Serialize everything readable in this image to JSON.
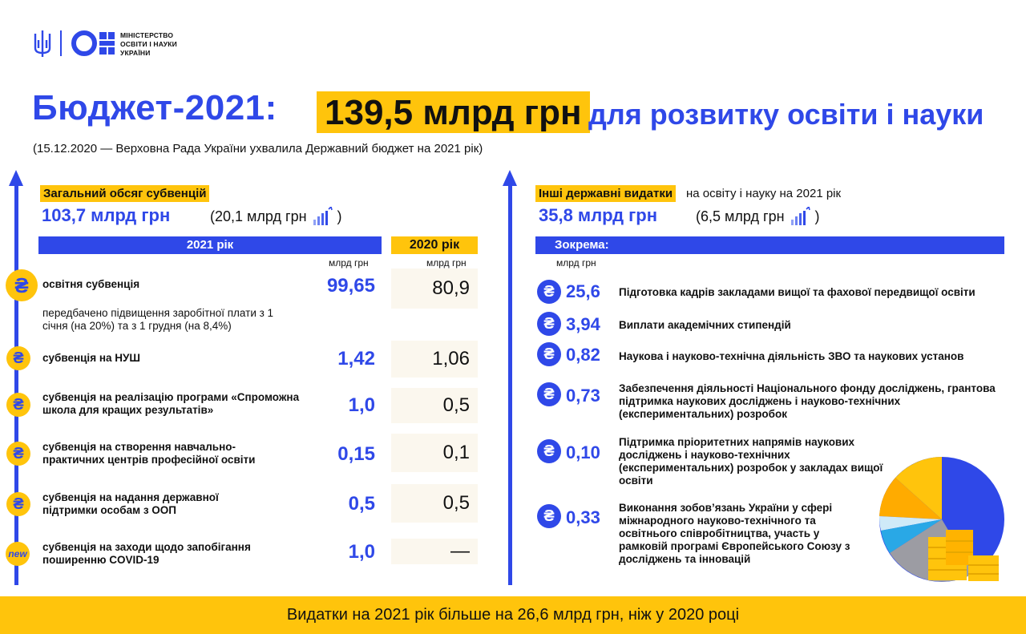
{
  "ministry": {
    "line1": "МІНІСТЕРСТВО",
    "line2": "ОСВІТИ І НАУКИ",
    "line3": "УКРАЇНИ"
  },
  "title": {
    "lead": "Бюджет-2021:",
    "highlight": "139,5 млрд грн",
    "rest": "для розвитку освіти і науки"
  },
  "subtitle": "(15.12.2020 — Верховна Рада України ухвалила Державний бюджет на 2021 рік)",
  "left": {
    "label": "Загальний обсяг субвенцій",
    "total": "103,7 млрд грн",
    "increase": "(20,1 млрд грн",
    "increase_close": ")",
    "col_2021": "2021 рік",
    "col_2020": "2020 рік",
    "unit": "млрд грн",
    "coin_symbol": "₴",
    "new_badge": "new",
    "rows": [
      {
        "label": "освітня субвенція",
        "v2021": "99,65",
        "v2020": "80,9",
        "note": "передбачено підвищення заробітної плати з 1 січня (на 20%) та з 1 грудня (на 8,4%)"
      },
      {
        "label": "субвенція на НУШ",
        "v2021": "1,42",
        "v2020": "1,06"
      },
      {
        "label": "субвенція на реалізацію програми «Спроможна школа для кращих результатів»",
        "v2021": "1,0",
        "v2020": "0,5"
      },
      {
        "label": "субвенція на створення навчально-практичних центрів професійної освіти",
        "v2021": "0,15",
        "v2020": "0,1"
      },
      {
        "label": "субвенція на надання державної підтримки особам з ООП",
        "v2021": "0,5",
        "v2020": "0,5"
      },
      {
        "label": "субвенція на заходи щодо запобігання поширенню COVID-19",
        "v2021": "1,0",
        "v2020": "—"
      }
    ]
  },
  "right": {
    "label": "Інші державні видатки",
    "label_rest": "на освіту і науку на 2021 рік",
    "total": "35,8 млрд грн",
    "increase": "(6,5 млрд грн",
    "increase_close": ")",
    "band": "Зокрема:",
    "unit": "млрд грн",
    "coin_symbol": "₴",
    "rows": [
      {
        "value": "25,6",
        "label": "Підготовка кадрів закладами вищої та фахової передвищої освіти"
      },
      {
        "value": "3,94",
        "label": "Виплати академічних стипендій"
      },
      {
        "value": "0,82",
        "label": "Наукова і науково-технічна діяльність ЗВО та наукових установ"
      },
      {
        "value": "0,73",
        "label": "Забезпечення діяльності Національного фонду досліджень, грантова підтримка наукових досліджень і науково-технічних (експериментальних) розробок"
      },
      {
        "value": "0,10",
        "label": "Підтримка пріоритетних напрямів наукових досліджень і науково-технічних (експериментальних) розробок у закладах вищої освіти"
      },
      {
        "value": "0,33",
        "label": "Виконання зобов’язань України у сфері міжнародного науково-технічного та освітнього співробітництва, участь у рамковій програмі Європейського Союзу з досліджень та інновацій"
      }
    ]
  },
  "footer": "Видатки на 2021 рік більше на 26,6 млрд грн, ніж у 2020 році",
  "colors": {
    "accent_blue": "#2f48e8",
    "accent_yellow": "#ffc40c"
  }
}
